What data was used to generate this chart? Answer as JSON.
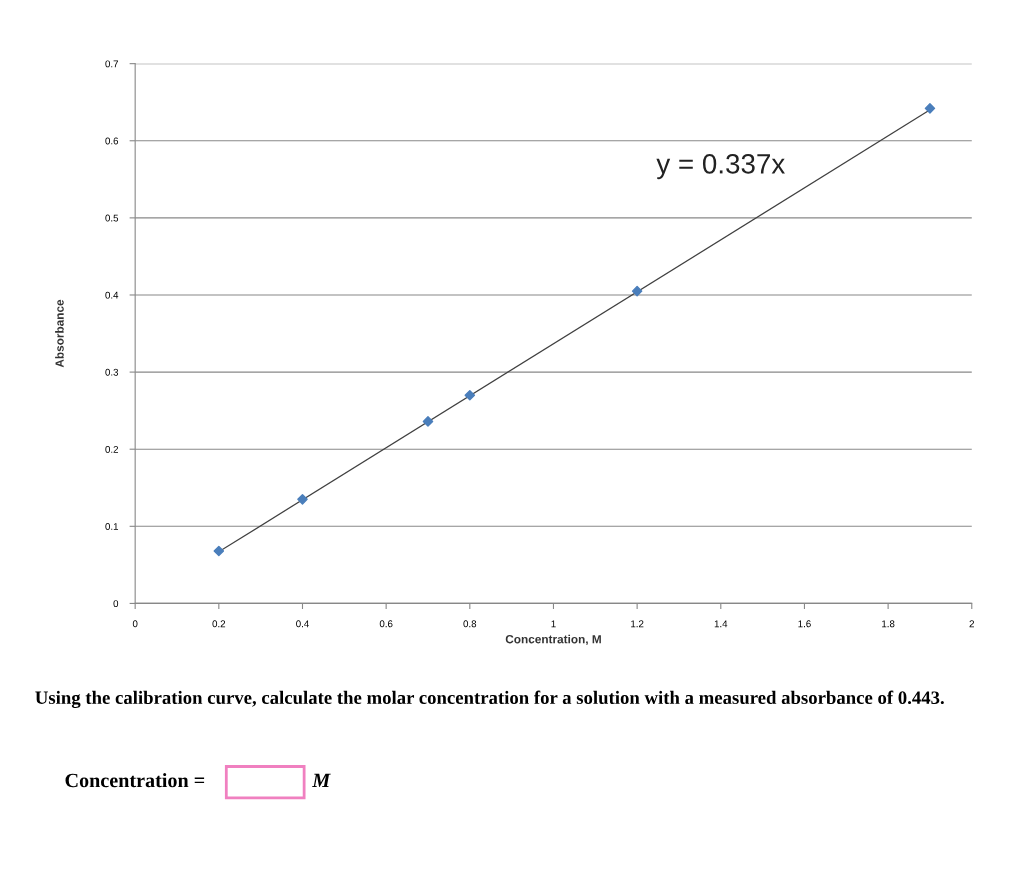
{
  "chart_data": {
    "type": "scatter",
    "xlabel": "Concentration, M",
    "ylabel": "Absorbance",
    "x": [
      0.2,
      0.4,
      0.7,
      0.8,
      1.2,
      1.9
    ],
    "series": [
      {
        "color": "#4a7ebb",
        "marker": "diamond",
        "values": [
          0.068,
          0.135,
          0.236,
          0.27,
          0.405,
          0.642
        ]
      },
      {
        "type": "line",
        "color": "#404040",
        "marker": "none",
        "line_style": "solid",
        "x": [
          0.2,
          1.9
        ],
        "values": [
          0.067,
          0.64
        ]
      }
    ],
    "xlim": [
      0,
      2
    ],
    "ylim": [
      0,
      0.7
    ],
    "xticks": [
      0,
      0.2,
      0.4,
      0.6,
      0.8,
      1,
      1.2,
      1.4,
      1.6,
      1.8,
      2
    ],
    "yticks": [
      0,
      0.1,
      0.2,
      0.3,
      0.4,
      0.5,
      0.6,
      0.7
    ],
    "grid": "y",
    "legend": false,
    "annotations": [
      "y = 0.337x",
      "Using the calibration curve, calculate the molar concentration for a solution with a measured absorbance of 0.443.",
      "Concentration =",
      "M"
    ]
  }
}
